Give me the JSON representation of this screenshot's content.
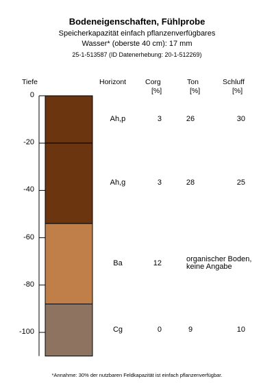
{
  "title": "Bodeneigenschaften, Fühlprobe",
  "subtitle_line1": "Speicherkapazität einfach pflanzenverfügbares",
  "subtitle_line2": "Wasser* (oberste 40 cm): 17 mm",
  "id_line": "25-1-513587 (ID Datenerhebung: 20-1-512269)",
  "headers": {
    "depth": "Tiefe",
    "horizon": "Horizont",
    "corg": "Corg",
    "corg_unit": "[%]",
    "ton": "Ton",
    "ton_unit": "[%]",
    "schluff": "Schluff",
    "schluff_unit": "[%]"
  },
  "footnote": "*Annahme: 30% der nutzbaren Feldkapazität ist einfach pflanzenverfügbar.",
  "chart_data": {
    "type": "table",
    "y_axis": {
      "label": "Tiefe",
      "ticks": [
        0,
        -20,
        -40,
        -60,
        -80,
        -100
      ],
      "range": [
        0,
        -110
      ]
    },
    "layers": [
      {
        "horizon": "Ah,p",
        "top": 0,
        "bottom": -20,
        "corg": "3",
        "ton": "26",
        "schluff": "30",
        "color": "#6B3510"
      },
      {
        "horizon": "Ah,g",
        "top": -20,
        "bottom": -54,
        "corg": "3",
        "ton": "28",
        "schluff": "25",
        "color": "#6B3510"
      },
      {
        "horizon": "Ba",
        "top": -54,
        "bottom": -88,
        "corg": "12",
        "note_line1": "organischer Boden,",
        "note_line2": "keine Angabe",
        "color": "#C07E48"
      },
      {
        "horizon": "Cg",
        "top": -88,
        "bottom": -110,
        "corg": "0",
        "ton": "9",
        "schluff": "10",
        "color": "#8E7360"
      }
    ]
  }
}
